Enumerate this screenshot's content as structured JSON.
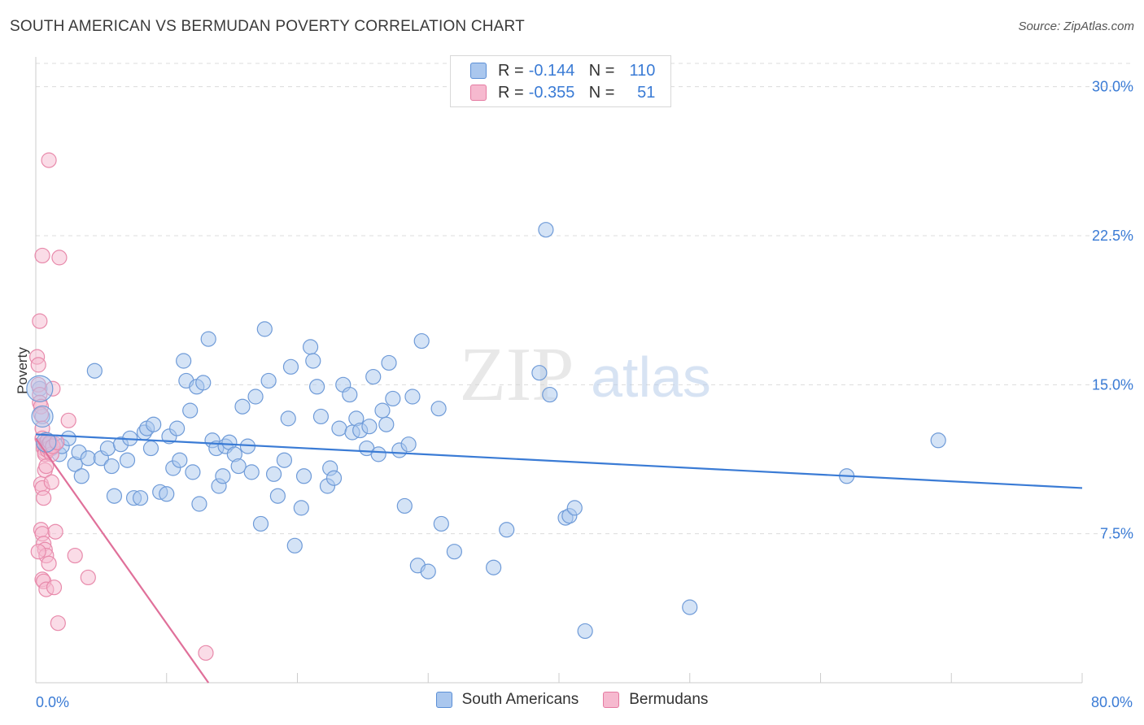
{
  "header": {
    "title": "SOUTH AMERICAN VS BERMUDAN POVERTY CORRELATION CHART",
    "source": "Source: ZipAtlas.com"
  },
  "watermark": {
    "zip": "ZIP",
    "atlas": "atlas"
  },
  "legend": {
    "rows": [
      {
        "r_label": "R =",
        "r_value": "-0.144",
        "n_label": "N =",
        "n_value": "110",
        "fill": "#aac7ee",
        "stroke": "#5b8fd6"
      },
      {
        "r_label": "R =",
        "r_value": "-0.355",
        "n_label": "N =",
        "n_value": "51",
        "fill": "#f6b9cf",
        "stroke": "#e57aa1"
      }
    ]
  },
  "bottom_legend": [
    {
      "label": "South Americans",
      "fill": "#aac7ee",
      "stroke": "#5b8fd6"
    },
    {
      "label": "Bermudans",
      "fill": "#f6b9cf",
      "stroke": "#e57aa1"
    }
  ],
  "colors": {
    "blue": "#3a7bd5",
    "blue_point": "#aac7ee",
    "pink_line": "#e0709a",
    "pink_point": "#f6b9cf",
    "grid": "#dcdcdc",
    "axis_label": "#3a7bd5"
  },
  "chart_data": {
    "type": "scatter",
    "title": "SOUTH AMERICAN VS BERMUDAN POVERTY CORRELATION CHART",
    "xlabel": "",
    "ylabel": "Poverty",
    "xlim": [
      0,
      80
    ],
    "ylim": [
      0,
      31.5
    ],
    "x_tick_labels": {
      "0": "0.0%",
      "80": "80.0%"
    },
    "y_ticks": [
      7.5,
      15.0,
      22.5,
      30.0
    ],
    "y_tick_labels": [
      "7.5%",
      "15.0%",
      "22.5%",
      "30.0%"
    ],
    "grid": true,
    "series": [
      {
        "name": "South Americans",
        "color": "#5b8fd6",
        "trend": {
          "x": [
            0,
            80
          ],
          "y": [
            12.5,
            9.8
          ]
        },
        "points": [
          [
            0.3,
            14.8
          ],
          [
            0.5,
            13.4
          ],
          [
            0.8,
            12.1
          ],
          [
            1.2,
            11.8
          ],
          [
            1.5,
            12.0
          ],
          [
            1.8,
            11.5
          ],
          [
            2.0,
            11.9
          ],
          [
            2.5,
            12.3
          ],
          [
            3.0,
            11.0
          ],
          [
            3.3,
            11.6
          ],
          [
            3.5,
            10.4
          ],
          [
            4.0,
            11.3
          ],
          [
            4.5,
            15.7
          ],
          [
            5.0,
            11.3
          ],
          [
            5.5,
            11.8
          ],
          [
            5.8,
            10.9
          ],
          [
            6.0,
            9.4
          ],
          [
            6.5,
            12.0
          ],
          [
            7.0,
            11.2
          ],
          [
            7.2,
            12.3
          ],
          [
            7.5,
            9.3
          ],
          [
            8.0,
            9.3
          ],
          [
            8.3,
            12.6
          ],
          [
            8.5,
            12.8
          ],
          [
            8.8,
            11.8
          ],
          [
            9.0,
            13.0
          ],
          [
            9.5,
            9.6
          ],
          [
            10.0,
            9.5
          ],
          [
            10.2,
            12.4
          ],
          [
            10.5,
            10.8
          ],
          [
            10.8,
            12.8
          ],
          [
            11.0,
            11.2
          ],
          [
            11.3,
            16.2
          ],
          [
            11.5,
            15.2
          ],
          [
            11.8,
            13.7
          ],
          [
            12.0,
            10.6
          ],
          [
            12.3,
            14.9
          ],
          [
            12.5,
            9.0
          ],
          [
            12.8,
            15.1
          ],
          [
            13.2,
            17.3
          ],
          [
            13.5,
            12.2
          ],
          [
            13.8,
            11.8
          ],
          [
            14.0,
            9.9
          ],
          [
            14.3,
            10.4
          ],
          [
            14.5,
            11.9
          ],
          [
            14.8,
            12.1
          ],
          [
            15.2,
            11.5
          ],
          [
            15.5,
            10.9
          ],
          [
            15.8,
            13.9
          ],
          [
            16.2,
            11.9
          ],
          [
            16.5,
            10.6
          ],
          [
            16.8,
            14.4
          ],
          [
            17.2,
            8.0
          ],
          [
            17.5,
            17.8
          ],
          [
            17.8,
            15.2
          ],
          [
            18.2,
            10.5
          ],
          [
            18.5,
            9.4
          ],
          [
            19.0,
            11.2
          ],
          [
            19.3,
            13.3
          ],
          [
            19.5,
            15.9
          ],
          [
            19.8,
            6.9
          ],
          [
            20.3,
            8.8
          ],
          [
            20.5,
            10.4
          ],
          [
            21.0,
            16.9
          ],
          [
            21.2,
            16.2
          ],
          [
            21.5,
            14.9
          ],
          [
            21.8,
            13.4
          ],
          [
            22.3,
            9.9
          ],
          [
            22.5,
            10.8
          ],
          [
            22.8,
            10.3
          ],
          [
            23.2,
            12.8
          ],
          [
            23.5,
            15.0
          ],
          [
            24.0,
            14.5
          ],
          [
            24.2,
            12.6
          ],
          [
            24.5,
            13.3
          ],
          [
            24.8,
            12.7
          ],
          [
            25.3,
            11.8
          ],
          [
            25.5,
            12.9
          ],
          [
            25.8,
            15.4
          ],
          [
            26.2,
            11.5
          ],
          [
            26.5,
            13.7
          ],
          [
            26.8,
            13.0
          ],
          [
            27.0,
            16.1
          ],
          [
            27.3,
            14.3
          ],
          [
            27.8,
            11.7
          ],
          [
            28.2,
            8.9
          ],
          [
            28.5,
            12.0
          ],
          [
            28.8,
            14.4
          ],
          [
            29.2,
            5.9
          ],
          [
            29.5,
            17.2
          ],
          [
            30.0,
            5.6
          ],
          [
            30.8,
            13.8
          ],
          [
            31.0,
            8.0
          ],
          [
            32.0,
            6.6
          ],
          [
            35.0,
            5.8
          ],
          [
            36.0,
            7.7
          ],
          [
            38.5,
            15.6
          ],
          [
            39.0,
            22.8
          ],
          [
            39.3,
            14.5
          ],
          [
            40.5,
            8.3
          ],
          [
            40.8,
            8.4
          ],
          [
            41.2,
            8.8
          ],
          [
            42.0,
            2.6
          ],
          [
            50.0,
            3.8
          ],
          [
            62.0,
            10.4
          ],
          [
            69.0,
            12.2
          ]
        ]
      },
      {
        "name": "Bermudans",
        "color": "#e57aa1",
        "trend": {
          "x": [
            0,
            13.2
          ],
          "y": [
            12.3,
            0.0
          ]
        },
        "points": [
          [
            0.1,
            16.4
          ],
          [
            0.2,
            16.0
          ],
          [
            0.2,
            15.0
          ],
          [
            0.3,
            14.5
          ],
          [
            0.3,
            14.1
          ],
          [
            0.4,
            13.9
          ],
          [
            0.4,
            13.5
          ],
          [
            0.5,
            12.8
          ],
          [
            0.5,
            12.3
          ],
          [
            0.6,
            12.0
          ],
          [
            0.6,
            11.8
          ],
          [
            0.7,
            11.6
          ],
          [
            0.7,
            11.5
          ],
          [
            0.8,
            12.1
          ],
          [
            0.8,
            11.9
          ],
          [
            0.9,
            12.2
          ],
          [
            0.9,
            11.7
          ],
          [
            1.0,
            12.0
          ],
          [
            1.0,
            11.8
          ],
          [
            1.1,
            12.1
          ],
          [
            1.2,
            11.5
          ],
          [
            1.3,
            11.9
          ],
          [
            0.3,
            18.2
          ],
          [
            0.5,
            21.5
          ],
          [
            1.0,
            26.3
          ],
          [
            1.8,
            21.4
          ],
          [
            0.4,
            10.0
          ],
          [
            0.5,
            9.8
          ],
          [
            0.6,
            9.3
          ],
          [
            0.7,
            10.7
          ],
          [
            0.8,
            10.9
          ],
          [
            1.2,
            10.1
          ],
          [
            0.4,
            7.7
          ],
          [
            0.5,
            7.5
          ],
          [
            0.6,
            7.0
          ],
          [
            0.7,
            6.7
          ],
          [
            0.8,
            6.4
          ],
          [
            1.0,
            6.0
          ],
          [
            0.5,
            5.2
          ],
          [
            0.6,
            5.1
          ],
          [
            0.8,
            4.7
          ],
          [
            1.4,
            4.8
          ],
          [
            1.5,
            7.6
          ],
          [
            1.7,
            3.0
          ],
          [
            3.0,
            6.4
          ],
          [
            4.0,
            5.3
          ],
          [
            1.3,
            14.8
          ],
          [
            2.5,
            13.2
          ],
          [
            1.6,
            12.1
          ],
          [
            0.2,
            6.6
          ],
          [
            13.0,
            1.5
          ]
        ]
      }
    ]
  }
}
